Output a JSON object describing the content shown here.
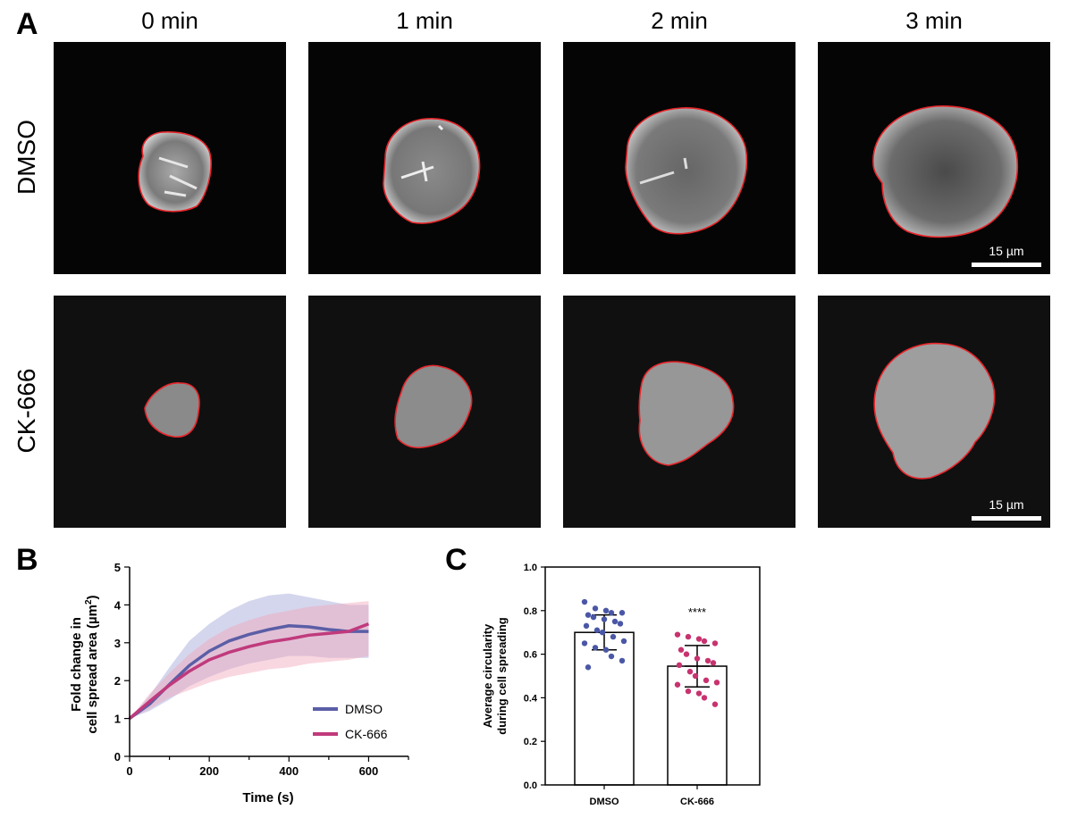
{
  "panels": {
    "a": "A",
    "b": "B",
    "c": "C"
  },
  "panel_a": {
    "time_labels": [
      "0 min",
      "1 min",
      "2 min",
      "3 min"
    ],
    "row_labels": [
      "DMSO",
      "CK-666"
    ],
    "scale_bar_label": "15 µm",
    "outline_color": "#e8262b"
  },
  "chart_data": [
    {
      "type": "line",
      "title": "",
      "xlabel": "Time (s)",
      "ylabel_line1": "Fold change in",
      "ylabel_line2": "cell spread area (µm",
      "ylabel_sup": "2",
      "ylabel_end": ")",
      "xlim": [
        0,
        700
      ],
      "ylim": [
        0,
        5
      ],
      "xticks": [
        "0",
        "200",
        "400",
        "600"
      ],
      "yticks": [
        "0",
        "1",
        "2",
        "3",
        "4",
        "5"
      ],
      "legend_position": "bottom-right",
      "x": [
        0,
        50,
        100,
        150,
        200,
        250,
        300,
        350,
        400,
        450,
        500,
        550,
        600
      ],
      "series": [
        {
          "name": "DMSO",
          "color": "#5b5ea6",
          "band_color": "#9fa3d8",
          "values": [
            1.0,
            1.38,
            1.9,
            2.4,
            2.78,
            3.05,
            3.22,
            3.35,
            3.45,
            3.42,
            3.35,
            3.3,
            3.3
          ],
          "lower": [
            1.0,
            1.2,
            1.5,
            1.85,
            2.1,
            2.3,
            2.45,
            2.55,
            2.65,
            2.65,
            2.6,
            2.6,
            2.6
          ],
          "upper": [
            1.0,
            1.6,
            2.35,
            3.05,
            3.5,
            3.85,
            4.1,
            4.25,
            4.3,
            4.2,
            4.1,
            4.0,
            4.0
          ]
        },
        {
          "name": "CK-666",
          "color": "#c03a7c",
          "band_color": "#f2a6bb",
          "values": [
            1.0,
            1.45,
            1.88,
            2.25,
            2.55,
            2.75,
            2.9,
            3.02,
            3.1,
            3.2,
            3.25,
            3.3,
            3.5
          ],
          "lower": [
            1.0,
            1.25,
            1.55,
            1.75,
            1.95,
            2.1,
            2.2,
            2.3,
            2.35,
            2.45,
            2.5,
            2.55,
            2.65
          ],
          "upper": [
            1.0,
            1.65,
            2.2,
            2.7,
            3.1,
            3.4,
            3.6,
            3.75,
            3.85,
            3.95,
            4.0,
            4.05,
            4.1
          ]
        }
      ]
    },
    {
      "type": "bar",
      "title": "",
      "xlabel": "",
      "ylabel_line1": "Average circularity",
      "ylabel_line2": "during cell spreading",
      "ylim": [
        0,
        1.0
      ],
      "yticks": [
        "0.0",
        "0.2",
        "0.4",
        "0.6",
        "0.8",
        "1.0"
      ],
      "categories": [
        "DMSO",
        "CK-666"
      ],
      "values": [
        0.7,
        0.545
      ],
      "sd": [
        0.08,
        0.095
      ],
      "significance": "****",
      "point_colors": [
        "#4a57a6",
        "#c8336f"
      ],
      "points": [
        [
          0.84,
          0.81,
          0.8,
          0.79,
          0.79,
          0.78,
          0.77,
          0.76,
          0.75,
          0.74,
          0.73,
          0.71,
          0.7,
          0.68,
          0.66,
          0.65,
          0.63,
          0.62,
          0.59,
          0.57,
          0.54
        ],
        [
          0.69,
          0.68,
          0.67,
          0.66,
          0.65,
          0.62,
          0.6,
          0.58,
          0.57,
          0.56,
          0.55,
          0.52,
          0.5,
          0.48,
          0.47,
          0.46,
          0.43,
          0.42,
          0.4,
          0.37
        ]
      ]
    }
  ]
}
